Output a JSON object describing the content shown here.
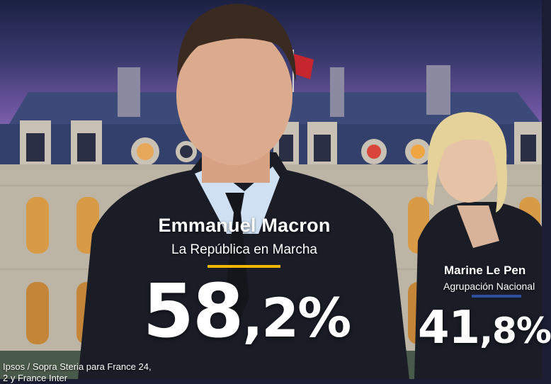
{
  "colors": {
    "accent_candidate_1": "#f2b705",
    "accent_candidate_2": "#2e4f9e",
    "text": "#ffffff"
  },
  "candidate_1": {
    "name": "Emmanuel Macron",
    "party": "La República en Marcha",
    "result_integer": "58",
    "result_decimal": ",2%"
  },
  "candidate_2": {
    "name": "Marine Le Pen",
    "party": "Agrupación Nacional",
    "result_integer": "41",
    "result_decimal": ",8%"
  },
  "source": {
    "line1": "Ipsos / Sopra Steria para France 24,",
    "line2": "2 y France Inter"
  }
}
